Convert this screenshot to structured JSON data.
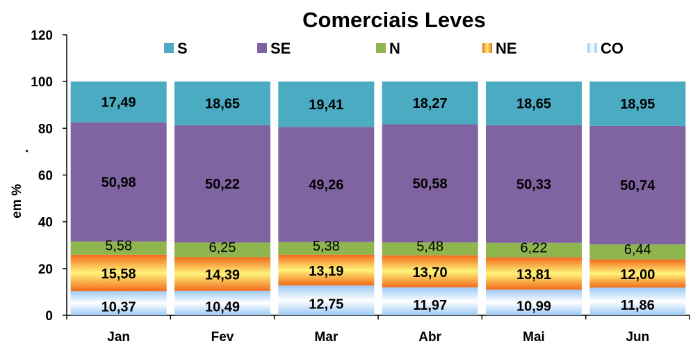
{
  "chart_data": {
    "type": "bar",
    "stacked": true,
    "title": "Comerciais Leves",
    "xlabel": "",
    "ylabel": "em %",
    "ylabel_suffix": ".",
    "ylim": [
      0,
      120
    ],
    "yticks": [
      0,
      20,
      40,
      60,
      80,
      100,
      120
    ],
    "categories": [
      "Jan",
      "Fev",
      "Mar",
      "Abr",
      "Mai",
      "Jun"
    ],
    "legend_position": "top",
    "series": [
      {
        "name": "CO",
        "color": "#9ccaf7",
        "values": [
          10.37,
          10.49,
          12.75,
          11.97,
          10.99,
          11.86
        ],
        "labels": [
          "10,37",
          "10,49",
          "12,75",
          "11,97",
          "10,99",
          "11,86"
        ]
      },
      {
        "name": "NE",
        "color": "#f58a23",
        "values": [
          15.58,
          14.39,
          13.19,
          13.7,
          13.81,
          12.0
        ],
        "labels": [
          "15,58",
          "14,39",
          "13,19",
          "13,70",
          "13,81",
          "12,00"
        ]
      },
      {
        "name": "N",
        "color": "#8fb54f",
        "values": [
          5.58,
          6.25,
          5.38,
          5.48,
          6.22,
          6.44
        ],
        "labels": [
          "5,58",
          "6,25",
          "5,38",
          "5,48",
          "6,22",
          "6,44"
        ]
      },
      {
        "name": "SE",
        "color": "#8064a2",
        "values": [
          50.98,
          50.22,
          49.26,
          50.58,
          50.33,
          50.74
        ],
        "labels": [
          "50,98",
          "50,22",
          "49,26",
          "50,58",
          "50,33",
          "50,74"
        ]
      },
      {
        "name": "S",
        "color": "#4babc2",
        "values": [
          17.49,
          18.65,
          19.41,
          18.27,
          18.65,
          18.95
        ],
        "labels": [
          "17,49",
          "18,65",
          "19,41",
          "18,27",
          "18,65",
          "18,95"
        ]
      }
    ],
    "legend_order": [
      "S",
      "SE",
      "N",
      "NE",
      "CO"
    ]
  }
}
